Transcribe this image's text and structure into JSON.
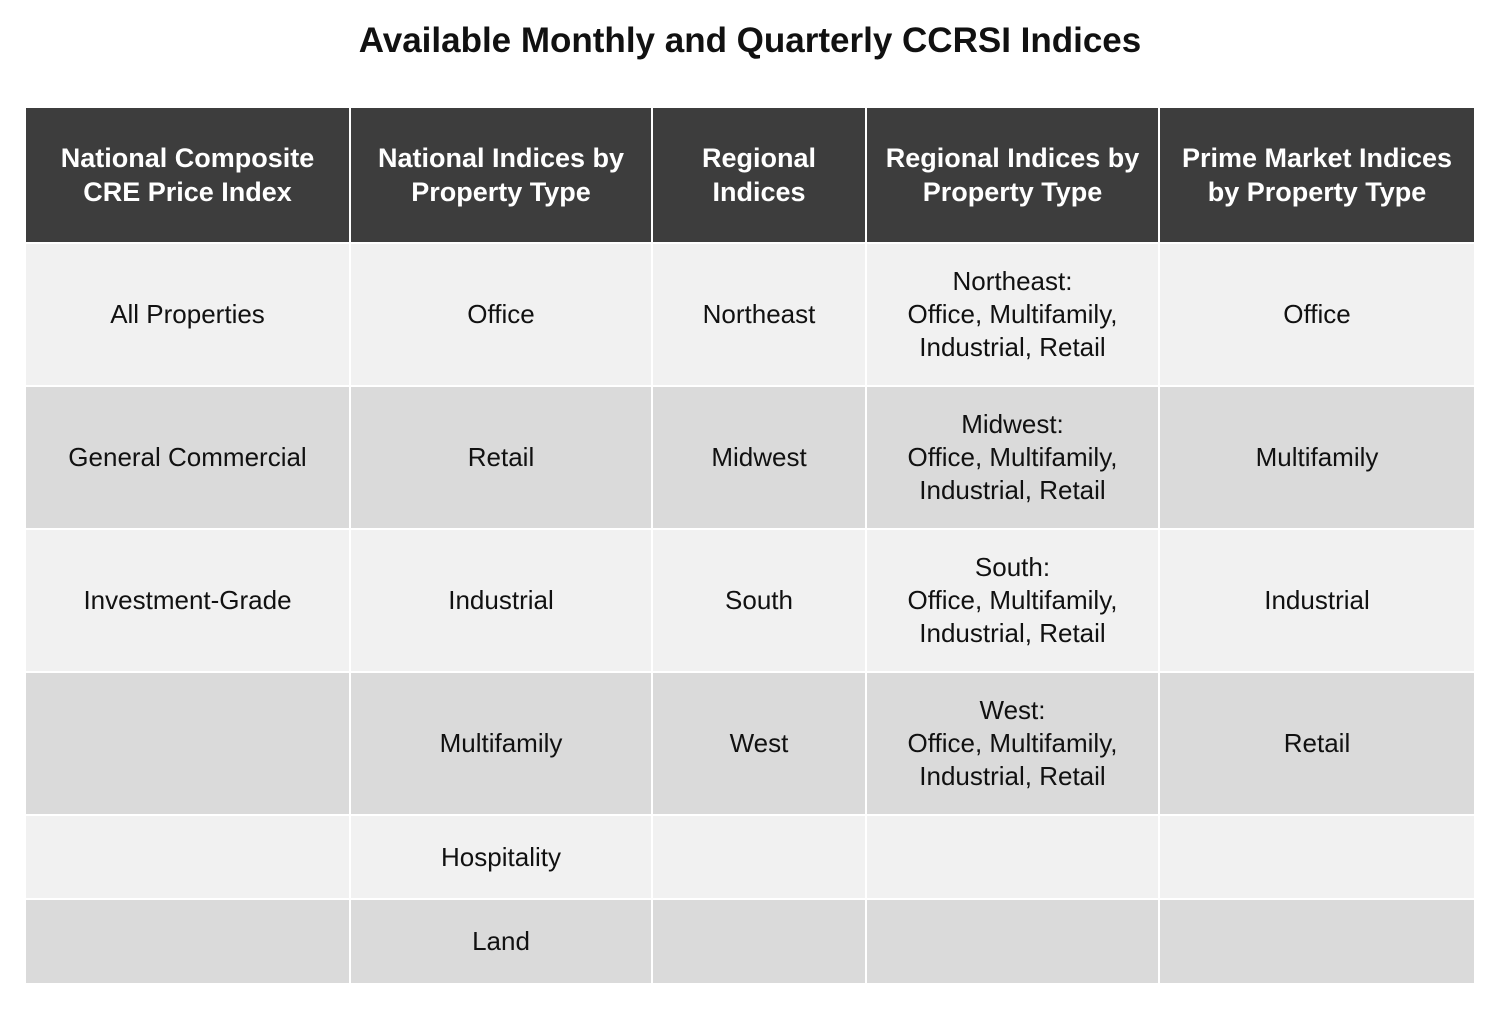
{
  "title": "Available Monthly and Quarterly CCRSI Indices",
  "colors": {
    "header_bg": "#3d3d3d",
    "header_text": "#ffffff",
    "row_light": "#f1f1f1",
    "row_dark": "#dadada"
  },
  "table": {
    "headers": [
      "National Composite CRE Price Index",
      "National Indices by Property Type",
      "Regional Indices",
      "Regional Indices by Property Type",
      "Prime Market Indices by Property Type"
    ],
    "rows": [
      {
        "national_composite": "All Properties",
        "national_by_type": "Office",
        "regional": "Northeast",
        "regional_by_type": {
          "region": "Northeast:",
          "types": "Office, Multifamily, Industrial, Retail"
        },
        "prime_market": "Office"
      },
      {
        "national_composite": "General Commercial",
        "national_by_type": "Retail",
        "regional": "Midwest",
        "regional_by_type": {
          "region": "Midwest:",
          "types": "Office, Multifamily, Industrial, Retail"
        },
        "prime_market": "Multifamily"
      },
      {
        "national_composite": "Investment-Grade",
        "national_by_type": "Industrial",
        "regional": "South",
        "regional_by_type": {
          "region": "South:",
          "types": "Office, Multifamily, Industrial, Retail"
        },
        "prime_market": "Industrial"
      },
      {
        "national_composite": "",
        "national_by_type": "Multifamily",
        "regional": "West",
        "regional_by_type": {
          "region": "West:",
          "types": "Office, Multifamily, Industrial, Retail"
        },
        "prime_market": "Retail"
      },
      {
        "national_composite": "",
        "national_by_type": "Hospitality",
        "regional": "",
        "regional_by_type": {
          "region": "",
          "types": ""
        },
        "prime_market": ""
      },
      {
        "national_composite": "",
        "national_by_type": "Land",
        "regional": "",
        "regional_by_type": {
          "region": "",
          "types": ""
        },
        "prime_market": ""
      }
    ]
  }
}
